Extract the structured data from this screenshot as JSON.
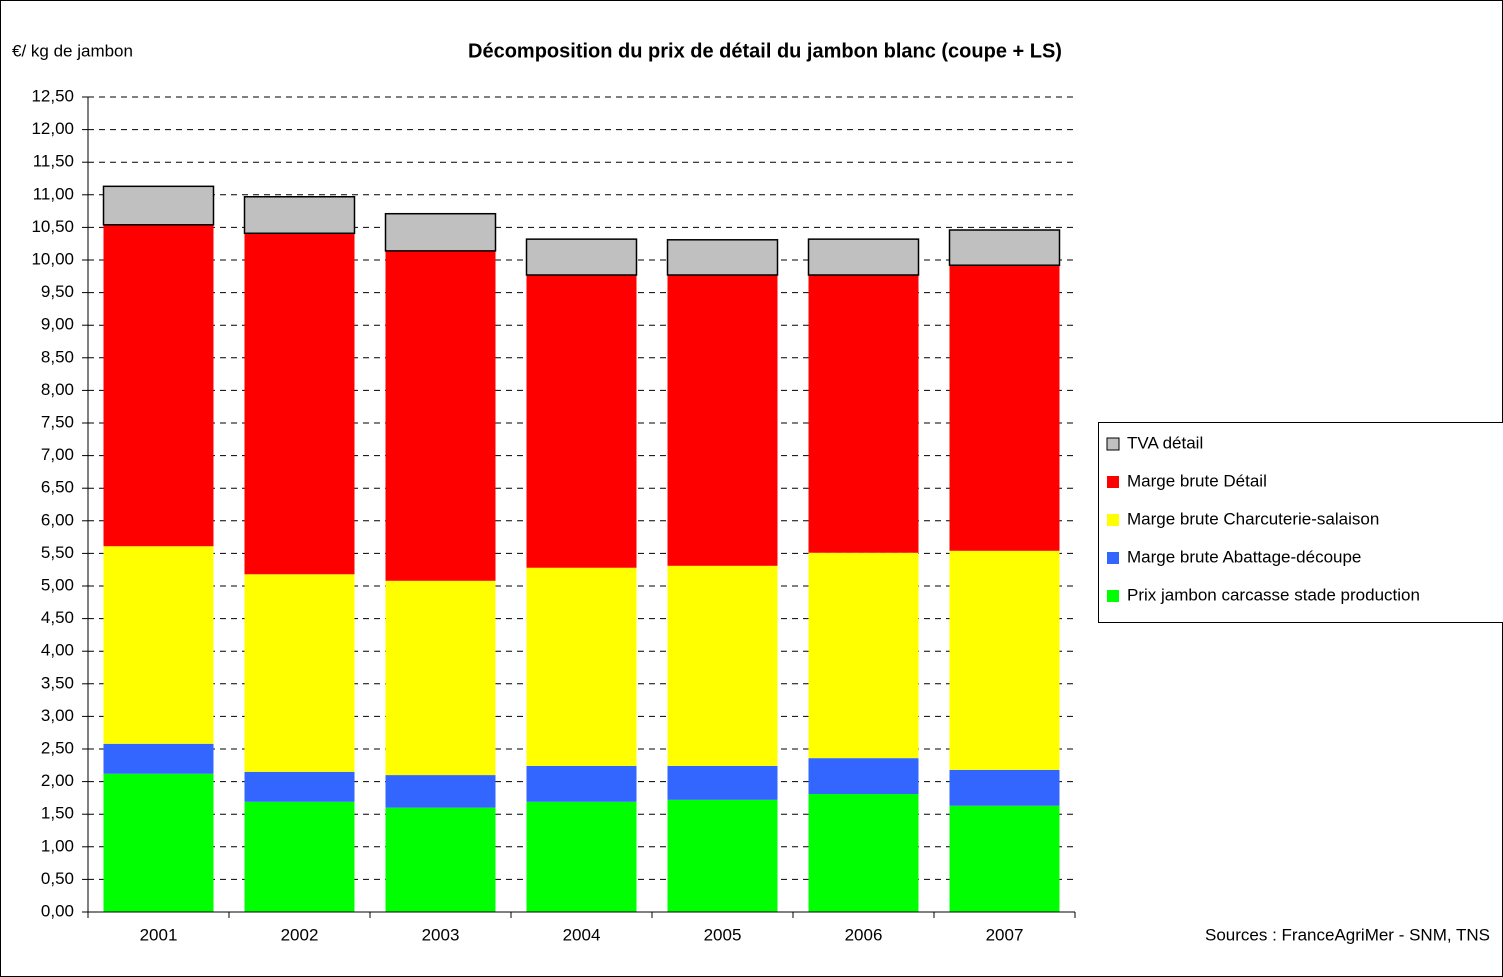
{
  "chart_data": {
    "type": "stacked_bar",
    "title": "Décomposition du prix de détail du jambon blanc  (coupe + LS)",
    "y_label": "€/ kg de jambon",
    "source": "Sources : FranceAgriMer - SNM, TNS",
    "categories": [
      "2001",
      "2002",
      "2003",
      "2004",
      "2005",
      "2006",
      "2007"
    ],
    "series": [
      {
        "name": "Prix jambon carcasse stade production",
        "color": "#00ff00",
        "values": [
          2.12,
          1.69,
          1.6,
          1.69,
          1.72,
          1.81,
          1.63
        ]
      },
      {
        "name": "Marge brute Abattage-découpe",
        "color": "#3366ff",
        "values": [
          0.46,
          0.46,
          0.5,
          0.55,
          0.52,
          0.55,
          0.55
        ]
      },
      {
        "name": "Marge brute Charcuterie-salaison",
        "color": "#ffff00",
        "values": [
          3.03,
          3.03,
          2.98,
          3.04,
          3.07,
          3.15,
          3.36
        ]
      },
      {
        "name": "Marge brute Détail",
        "color": "#ff0000",
        "values": [
          4.93,
          5.23,
          5.06,
          4.49,
          4.46,
          4.26,
          4.38
        ]
      },
      {
        "name": "TVA détail",
        "color": "#c0c0c0",
        "values": [
          0.59,
          0.56,
          0.57,
          0.55,
          0.54,
          0.55,
          0.54
        ]
      }
    ],
    "ylim": [
      0,
      12.5
    ],
    "yticks": [
      {
        "value": 0,
        "label": "0,00"
      },
      {
        "value": 0.5,
        "label": "0,50"
      },
      {
        "value": 1,
        "label": "1,00"
      },
      {
        "value": 1.5,
        "label": "1,50"
      },
      {
        "value": 2,
        "label": "2,00"
      },
      {
        "value": 2.5,
        "label": "2,50"
      },
      {
        "value": 3,
        "label": "3,00"
      },
      {
        "value": 3.5,
        "label": "3,50"
      },
      {
        "value": 4,
        "label": "4,00"
      },
      {
        "value": 4.5,
        "label": "4,50"
      },
      {
        "value": 5,
        "label": "5,00"
      },
      {
        "value": 5.5,
        "label": "5,50"
      },
      {
        "value": 6,
        "label": "6,00"
      },
      {
        "value": 6.5,
        "label": "6,50"
      },
      {
        "value": 7,
        "label": "7,00"
      },
      {
        "value": 7.5,
        "label": "7,50"
      },
      {
        "value": 8,
        "label": "8,00"
      },
      {
        "value": 8.5,
        "label": "8,50"
      },
      {
        "value": 9,
        "label": "9,00"
      },
      {
        "value": 9.5,
        "label": "9,50"
      },
      {
        "value": 10,
        "label": "10,00"
      },
      {
        "value": 10.5,
        "label": "10,50"
      },
      {
        "value": 11,
        "label": "11,00"
      },
      {
        "value": 11.5,
        "label": "11,50"
      },
      {
        "value": 12,
        "label": "12,00"
      },
      {
        "value": 12.5,
        "label": "12,50"
      }
    ],
    "grid": true,
    "legend": "right"
  }
}
